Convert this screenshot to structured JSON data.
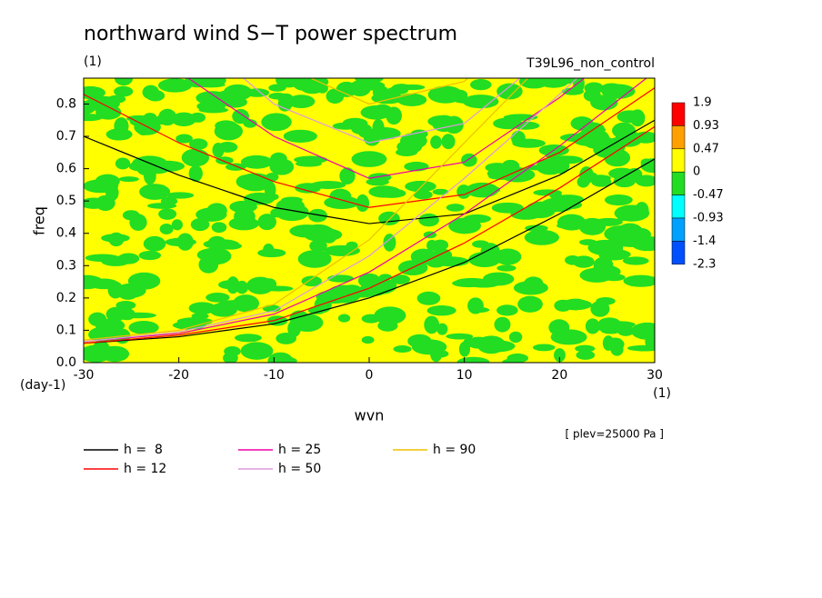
{
  "chart_data": {
    "type": "contour",
    "title": "northward wind S−T power spectrum",
    "subtitle": "(1)",
    "run_label": "T39L96_non_control",
    "ylabel": "freq",
    "yunit": "(day-1)",
    "xlabel": "wvn",
    "xunit": "(1)",
    "note": "[ plev=25000 Pa ]",
    "xlim": [
      -30,
      30
    ],
    "xticks": [
      -30,
      -20,
      -10,
      0,
      10,
      20,
      30
    ],
    "ylim": [
      0,
      0.88
    ],
    "yticks": [
      {
        "value": 0,
        "label": "0.0"
      },
      0.1,
      0.2,
      0.3,
      0.4,
      0.5,
      0.6,
      0.7,
      0.8
    ],
    "colorbar": {
      "levels": [
        1.9,
        0.93,
        0.47,
        0,
        -0.47,
        -0.93,
        -1.4,
        -2.3
      ],
      "colors": [
        "#ff0000",
        "#ffa000",
        "#ffff00",
        "#22dd22",
        "#00ffff",
        "#00a0ff",
        "#0050ff"
      ]
    },
    "series": [
      {
        "name": "h =  8",
        "color": "#000000",
        "curves": [
          {
            "x": [
              -30,
              -20,
              -10,
              0,
              10,
              20,
              30
            ],
            "values": [
              0.7,
              0.58,
              0.48,
              0.43,
              0.46,
              0.58,
              0.75
            ]
          },
          {
            "x": [
              -30,
              -20,
              -10,
              0,
              10,
              20,
              30
            ],
            "values": [
              0.06,
              0.08,
              0.12,
              0.2,
              0.31,
              0.46,
              0.63
            ]
          }
        ]
      },
      {
        "name": "h = 12",
        "color": "#ff0000",
        "curves": [
          {
            "x": [
              -30,
              -20,
              -10,
              0,
              10,
              20,
              30
            ],
            "values": [
              0.83,
              0.68,
              0.56,
              0.48,
              0.52,
              0.65,
              0.85
            ]
          },
          {
            "x": [
              -30,
              -20,
              -10,
              0,
              10,
              20,
              30
            ],
            "values": [
              0.06,
              0.085,
              0.13,
              0.23,
              0.37,
              0.54,
              0.73
            ]
          }
        ]
      },
      {
        "name": "h = 25",
        "color": "#ee00aa",
        "curves": [
          {
            "x": [
              -30,
              -20,
              -10,
              0,
              10,
              20,
              30
            ],
            "values": [
              1.1,
              0.9,
              0.7,
              0.57,
              0.62,
              0.82,
              1.05
            ]
          },
          {
            "x": [
              -30,
              -20,
              -10,
              0,
              10,
              20,
              30
            ],
            "values": [
              0.065,
              0.09,
              0.15,
              0.28,
              0.46,
              0.67,
              0.9
            ]
          }
        ]
      },
      {
        "name": "h = 50",
        "color": "#dd99dd",
        "curves": [
          {
            "x": [
              -30,
              -20,
              -10,
              0,
              10,
              20,
              30
            ],
            "values": [
              1.3,
              1.05,
              0.8,
              0.68,
              0.74,
              0.98,
              1.25
            ]
          },
          {
            "x": [
              -30,
              -20,
              -10,
              0,
              10,
              20,
              30
            ],
            "values": [
              0.065,
              0.095,
              0.16,
              0.33,
              0.57,
              0.83,
              1.1
            ]
          }
        ]
      },
      {
        "name": "h = 90",
        "color": "#eec000",
        "curves": [
          {
            "x": [
              -30,
              -20,
              -10,
              0,
              10,
              20,
              30
            ],
            "values": [
              1.5,
              1.2,
              0.93,
              0.8,
              0.87,
              1.15,
              1.45
            ]
          },
          {
            "x": [
              -30,
              -20,
              -10,
              0,
              10,
              20,
              30
            ],
            "values": [
              0.07,
              0.1,
              0.18,
              0.38,
              0.68,
              0.98,
              1.3
            ]
          }
        ]
      }
    ]
  }
}
